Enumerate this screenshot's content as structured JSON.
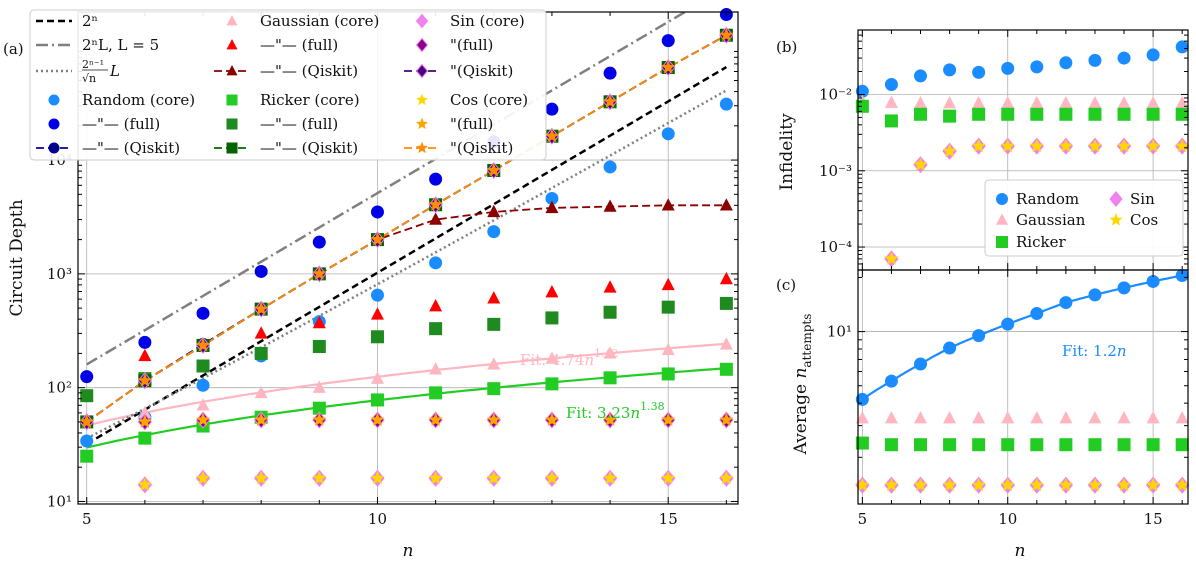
{
  "colors": {
    "random_core": "#1a8cff",
    "random_full": "#0000e6",
    "random_qiskit": "#00008b",
    "gauss_core": "#ffb6c1",
    "gauss_full": "#ff0000",
    "gauss_qiskit": "#8b0000",
    "ricker_core": "#22cc22",
    "ricker_full": "#1f8a1f",
    "ricker_qiskit": "#006400",
    "sin_core": "#ee82ee",
    "sin_full": "#8b008b",
    "sin_qiskit": "#4b0082",
    "cos_core": "#ffd700",
    "cos_full": "#ffa500",
    "cos_qiskit": "#ff8c00",
    "guide_2n": "#000000",
    "guide_2nL": "#808080"
  },
  "chart_data": [
    {
      "panel": "(a)",
      "type": "scatter",
      "ylog": true,
      "xlabel": "n",
      "ylabel": "Circuit Depth",
      "xlim": [
        4.85,
        16.2
      ],
      "ylim": [
        9.5,
        200000
      ],
      "xticks": [
        5,
        10,
        15
      ],
      "yticks": [
        {
          "v": 10,
          "t": "10¹"
        },
        {
          "v": 100,
          "t": "10²"
        },
        {
          "v": 1000,
          "t": "10³"
        },
        {
          "v": 10000,
          "t": "10⁴"
        }
      ],
      "grid": true,
      "x": [
        5,
        6,
        7,
        8,
        9,
        10,
        11,
        12,
        13,
        14,
        15,
        16
      ],
      "series": [
        {
          "key": "2n",
          "name": "2ⁿ",
          "style": "line",
          "dash": "7,4",
          "colorKey": "guide_2n",
          "width": 2.5,
          "values": [
            32,
            64,
            128,
            256,
            512,
            1024,
            2048,
            4096,
            8192,
            16384,
            32768,
            65536
          ]
        },
        {
          "key": "2nL",
          "name": "2ⁿL, L = 5",
          "style": "line",
          "dash": "12,4,2,4",
          "colorKey": "guide_2nL",
          "width": 2.5,
          "values": [
            160,
            320,
            640,
            1280,
            2560,
            5120,
            10240,
            20480,
            40960,
            81920,
            163840,
            327680
          ]
        },
        {
          "key": "2n1",
          "name": "2^(n−1)/√n L",
          "style": "line",
          "dash": "2,3",
          "colorKey": "guide_2nL",
          "width": 2.5,
          "values": [
            35.8,
            65.3,
            121,
            226,
            427,
            809,
            1544,
            2956,
            5679,
            10945,
            21153,
            40960
          ]
        },
        {
          "key": "rand_core",
          "name": "Random (core)",
          "marker": "circle",
          "colorKey": "random_core",
          "values": [
            34,
            55,
            105,
            190,
            380,
            650,
            1250,
            2350,
            4600,
            8700,
            17000,
            31000
          ]
        },
        {
          "key": "rand_full",
          "name": "—\"— (full)",
          "marker": "circle",
          "colorKey": "random_full",
          "values": [
            125,
            250,
            450,
            1050,
            1900,
            3500,
            6800,
            14500,
            28000,
            58000,
            112000,
            190000
          ]
        },
        {
          "key": "rand_qiskit",
          "name": "—\"— (Qiskit)",
          "marker": "circle",
          "colorKey": "random_qiskit",
          "line": true,
          "dash": "8,4",
          "values": [
            50,
            115,
            240,
            490,
            1000,
            2000,
            4050,
            8100,
            16200,
            32500,
            65000,
            125000
          ]
        },
        {
          "key": "gauss_core",
          "name": "Gaussian (core)",
          "marker": "triangle",
          "colorKey": "gauss_core",
          "values": [
            53,
            60,
            70,
            90,
            100,
            120,
            145,
            160,
            180,
            200,
            215,
            240
          ]
        },
        {
          "key": "gauss_full",
          "name": "—\"— (full)",
          "marker": "triangle",
          "colorKey": "gauss_full",
          "values": [
            50,
            190,
            230,
            300,
            370,
            440,
            520,
            610,
            690,
            760,
            800,
            900
          ]
        },
        {
          "key": "gauss_qiskit",
          "name": "—\"— (Qiskit)",
          "marker": "triangle",
          "colorKey": "gauss_qiskit",
          "line": true,
          "dash": "8,4",
          "values": [
            50,
            115,
            235,
            490,
            1000,
            2000,
            3000,
            3500,
            3800,
            3900,
            4000,
            4000
          ]
        },
        {
          "key": "ricker_core",
          "name": "Ricker (core)",
          "marker": "square",
          "colorKey": "ricker_core",
          "values": [
            25,
            36,
            46,
            55,
            66,
            78,
            90,
            98,
            108,
            122,
            132,
            145
          ]
        },
        {
          "key": "ricker_full",
          "name": "—\"— (full)",
          "marker": "square",
          "colorKey": "ricker_full",
          "values": [
            85,
            120,
            155,
            200,
            230,
            280,
            330,
            360,
            410,
            460,
            510,
            550
          ]
        },
        {
          "key": "ricker_qiskit",
          "name": "—\"— (Qiskit)",
          "marker": "square",
          "colorKey": "ricker_qiskit",
          "line": true,
          "dash": "8,4",
          "values": [
            50,
            115,
            235,
            490,
            1000,
            2000,
            4050,
            8100,
            16200,
            32500,
            65000,
            125000
          ]
        },
        {
          "key": "sin_core",
          "name": "Sin (core)",
          "marker": "diamond",
          "colorKey": "sin_core",
          "values": [
            null,
            14,
            16,
            16,
            16,
            16,
            16,
            16,
            16,
            16,
            16,
            16
          ]
        },
        {
          "key": "sin_full",
          "name": "\"(full)",
          "marker": "diamond",
          "colorKey": "sin_full",
          "values": [
            50,
            50,
            52,
            52,
            52,
            52,
            52,
            52,
            52,
            52,
            52,
            52
          ]
        },
        {
          "key": "sin_qiskit",
          "name": "\"(Qiskit)",
          "marker": "diamond",
          "colorKey": "sin_qiskit",
          "line": true,
          "dash": "8,4",
          "values": [
            50,
            115,
            235,
            490,
            1000,
            2000,
            4050,
            8100,
            16200,
            32500,
            65000,
            125000
          ]
        },
        {
          "key": "cos_core",
          "name": "Cos (core)",
          "marker": "star",
          "colorKey": "cos_core",
          "values": [
            null,
            14,
            16,
            16,
            16,
            16,
            16,
            16,
            16,
            16,
            16,
            16
          ]
        },
        {
          "key": "cos_full",
          "name": "\"(full)",
          "marker": "star",
          "colorKey": "cos_full",
          "values": [
            50,
            50,
            52,
            52,
            52,
            52,
            52,
            52,
            52,
            52,
            52,
            52
          ]
        },
        {
          "key": "cos_qiskit",
          "name": "\"(Qiskit)",
          "marker": "star",
          "colorKey": "cos_qiskit",
          "line": true,
          "dash": "8,4",
          "values": [
            50,
            115,
            235,
            490,
            1000,
            2000,
            4050,
            8100,
            16200,
            32500,
            65000,
            125000
          ]
        }
      ],
      "fits": [
        {
          "label": "Fit: 4.74n^1.42",
          "coef": 4.74,
          "exp": 1.42,
          "colorKey": "gauss_core"
        },
        {
          "label": "Fit: 3.23n^1.38",
          "coef": 3.23,
          "exp": 1.38,
          "colorKey": "ricker_core"
        }
      ]
    },
    {
      "panel": "(b)",
      "type": "scatter",
      "ylog": true,
      "ylabel": "Infidelity",
      "xlim": [
        4.85,
        16.2
      ],
      "ylim": [
        5e-05,
        0.07
      ],
      "xticks": [],
      "yticks": [
        {
          "v": 0.0001,
          "t": "10⁻⁴"
        },
        {
          "v": 0.001,
          "t": "10⁻³"
        },
        {
          "v": 0.01,
          "t": "10⁻²"
        }
      ],
      "grid": true,
      "x": [
        5,
        6,
        7,
        8,
        9,
        10,
        11,
        12,
        13,
        14,
        15,
        16
      ],
      "series": [
        {
          "key": "b_random",
          "name": "Random",
          "marker": "circle",
          "colorKey": "random_core",
          "values": [
            0.011,
            0.0135,
            0.0175,
            0.021,
            0.0195,
            0.022,
            0.023,
            0.026,
            0.028,
            0.03,
            0.033,
            0.042
          ]
        },
        {
          "key": "b_gauss",
          "name": "Gaussian",
          "marker": "triangle",
          "colorKey": "gauss_core",
          "values": [
            0.008,
            0.0078,
            0.0077,
            0.0077,
            0.0077,
            0.0077,
            0.0077,
            0.0077,
            0.0077,
            0.0077,
            0.0077,
            0.0077
          ]
        },
        {
          "key": "b_ricker",
          "name": "Ricker",
          "marker": "square",
          "colorKey": "ricker_core",
          "values": [
            0.007,
            0.0045,
            0.0055,
            0.0052,
            0.0055,
            0.0055,
            0.0055,
            0.0055,
            0.0055,
            0.0055,
            0.0055,
            0.0055
          ]
        },
        {
          "key": "b_sin",
          "name": "Sin",
          "marker": "diamond",
          "colorKey": "sin_core",
          "values": [
            null,
            7e-05,
            0.0012,
            0.0018,
            0.0021,
            0.0021,
            0.0021,
            0.0021,
            0.0021,
            0.0021,
            0.0021,
            0.0021
          ]
        },
        {
          "key": "b_cos",
          "name": "Cos",
          "marker": "star",
          "colorKey": "cos_core",
          "values": [
            null,
            7e-05,
            0.0012,
            0.0018,
            0.0021,
            0.0021,
            0.0021,
            0.0021,
            0.0021,
            0.0021,
            0.0021,
            0.0021
          ]
        }
      ]
    },
    {
      "panel": "(c)",
      "type": "scatter",
      "ylog": true,
      "xlabel": "n",
      "ylabel": "Average n_attempts",
      "xlim": [
        4.85,
        16.2
      ],
      "ylim": [
        1.1,
        22
      ],
      "xticks": [
        5,
        10,
        15
      ],
      "yticks": [
        {
          "v": 10,
          "t": "10¹"
        }
      ],
      "grid": true,
      "x": [
        5,
        6,
        7,
        8,
        9,
        10,
        11,
        12,
        13,
        14,
        15,
        16
      ],
      "series": [
        {
          "key": "c_random",
          "name": "Random",
          "marker": "circle",
          "colorKey": "random_core",
          "values": [
            4.2,
            5.3,
            6.6,
            8.1,
            9.5,
            11,
            12.6,
            14.5,
            16,
            17.5,
            19,
            20.5
          ]
        },
        {
          "key": "c_gauss",
          "name": "Gaussian",
          "marker": "triangle",
          "colorKey": "gauss_core",
          "values": [
            3.3,
            3.3,
            3.3,
            3.3,
            3.3,
            3.3,
            3.3,
            3.3,
            3.3,
            3.3,
            3.3,
            3.3
          ]
        },
        {
          "key": "c_ricker",
          "name": "Ricker",
          "marker": "square",
          "colorKey": "ricker_core",
          "values": [
            2.4,
            2.35,
            2.35,
            2.35,
            2.35,
            2.35,
            2.35,
            2.35,
            2.35,
            2.35,
            2.35,
            2.35
          ]
        },
        {
          "key": "c_sin",
          "name": "Sin",
          "marker": "diamond",
          "colorKey": "sin_core",
          "values": [
            1.4,
            1.4,
            1.4,
            1.4,
            1.4,
            1.4,
            1.4,
            1.4,
            1.4,
            1.4,
            1.4,
            1.4
          ]
        },
        {
          "key": "c_cos",
          "name": "Cos",
          "marker": "star",
          "colorKey": "cos_core",
          "values": [
            1.4,
            1.4,
            1.4,
            1.4,
            1.4,
            1.4,
            1.4,
            1.4,
            1.4,
            1.4,
            1.4,
            1.4
          ]
        }
      ],
      "fits": [
        {
          "label": "Fit: 1.2n",
          "coef": 1.2,
          "exp": 1.08,
          "colorKey": "random_core"
        }
      ]
    }
  ]
}
